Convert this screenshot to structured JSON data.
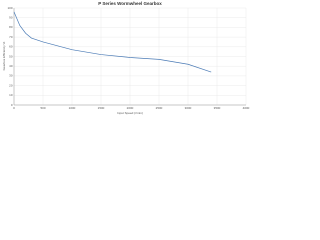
{
  "chart_data": {
    "type": "line",
    "title": "P Series Wormwheel Gearbox",
    "x_label": "Input Speed (r/min)",
    "y_label": "Gearbox Efficiency %",
    "x": [
      0,
      100,
      200,
      300,
      500,
      750,
      1000,
      1500,
      2000,
      2500,
      3000,
      3400
    ],
    "series": [
      {
        "name": "Efficiency",
        "color": "#4a7ab5",
        "values": [
          96,
          82,
          74,
          69,
          65,
          61,
          57,
          52,
          49,
          47,
          42,
          34
        ]
      }
    ],
    "xlim": [
      0,
      4000
    ],
    "xticks": [
      0,
      500,
      1000,
      1500,
      2000,
      2500,
      3000,
      3500,
      4000
    ],
    "ylim": [
      0,
      100
    ],
    "yticks": [
      0,
      10,
      20,
      30,
      40,
      50,
      60,
      70,
      80,
      90,
      100
    ],
    "grid": true
  }
}
